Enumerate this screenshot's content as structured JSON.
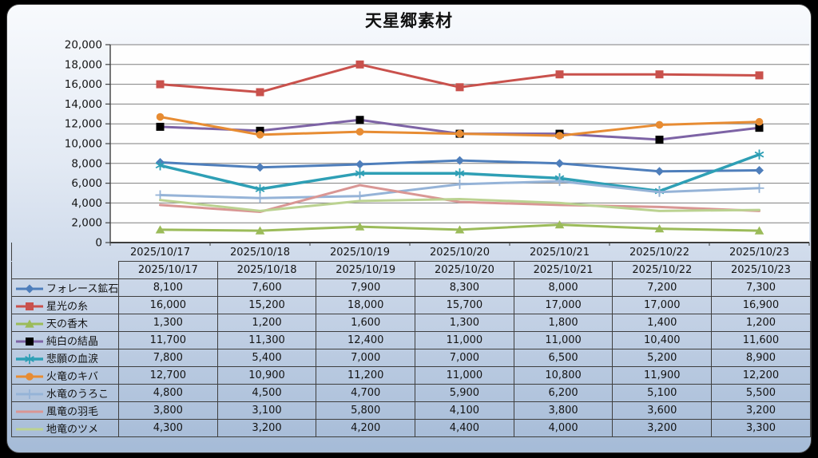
{
  "title": "天星郷素材",
  "colors": {
    "page_bg": "#000000",
    "background_top": "#F8FAFD",
    "background_bottom": "#A5BBD7",
    "plot_bg": "#FEFEFE",
    "grid": "#7F7F7F",
    "axis": "#3F3F3F",
    "table_border": "#3F3F3F",
    "text": "#141414"
  },
  "chart_data": {
    "type": "line",
    "title": "天星郷素材",
    "x": [
      "2025/10/17",
      "2025/10/18",
      "2025/10/19",
      "2025/10/20",
      "2025/10/21",
      "2025/10/22",
      "2025/10/23"
    ],
    "ylim": [
      0,
      20000
    ],
    "ytick_step": 2000,
    "grid": true,
    "legend_position": "data-table-left",
    "series": [
      {
        "name": "フォレース鉱石",
        "color": "#4E7EBB",
        "marker": "diamond",
        "marker_color": "#4E7EBB",
        "line_width": 3,
        "values": [
          8100,
          7600,
          7900,
          8300,
          8000,
          7200,
          7300
        ]
      },
      {
        "name": "星光の糸",
        "color": "#C9514C",
        "marker": "square",
        "marker_color": "#C9514C",
        "line_width": 3,
        "values": [
          16000,
          15200,
          18000,
          15700,
          17000,
          17000,
          16900
        ]
      },
      {
        "name": "天の香木",
        "color": "#9BBB59",
        "marker": "triangle",
        "marker_color": "#9BBB59",
        "line_width": 3,
        "values": [
          1300,
          1200,
          1600,
          1300,
          1800,
          1400,
          1200
        ]
      },
      {
        "name": "純白の結晶",
        "color": "#7D63A5",
        "marker": "square",
        "marker_color": "#000000",
        "line_width": 3,
        "values": [
          11700,
          11300,
          12400,
          11000,
          11000,
          10400,
          11600
        ]
      },
      {
        "name": "悲願の血涙",
        "color": "#2E9FB5",
        "marker": "asterisk",
        "marker_color": "#2E9FB5",
        "line_width": 3.5,
        "values": [
          7800,
          5400,
          7000,
          7000,
          6500,
          5200,
          8900
        ]
      },
      {
        "name": "火竜のキバ",
        "color": "#E78C33",
        "marker": "circle",
        "marker_color": "#E78C33",
        "line_width": 3,
        "values": [
          12700,
          10900,
          11200,
          11000,
          10800,
          11900,
          12200
        ]
      },
      {
        "name": "水竜のうろこ",
        "color": "#95B3D7",
        "marker": "plus",
        "marker_color": "#95B3D7",
        "line_width": 3,
        "values": [
          4800,
          4500,
          4700,
          5900,
          6200,
          5100,
          5500
        ]
      },
      {
        "name": "風竜の羽毛",
        "color": "#D99694",
        "marker": "none",
        "marker_color": "#D99694",
        "line_width": 3,
        "values": [
          3800,
          3100,
          5800,
          4100,
          3800,
          3600,
          3200
        ]
      },
      {
        "name": "地竜のツメ",
        "color": "#BBD291",
        "marker": "none",
        "marker_color": "#BBD291",
        "line_width": 3,
        "values": [
          4300,
          3200,
          4200,
          4400,
          4000,
          3200,
          3300
        ]
      }
    ]
  }
}
